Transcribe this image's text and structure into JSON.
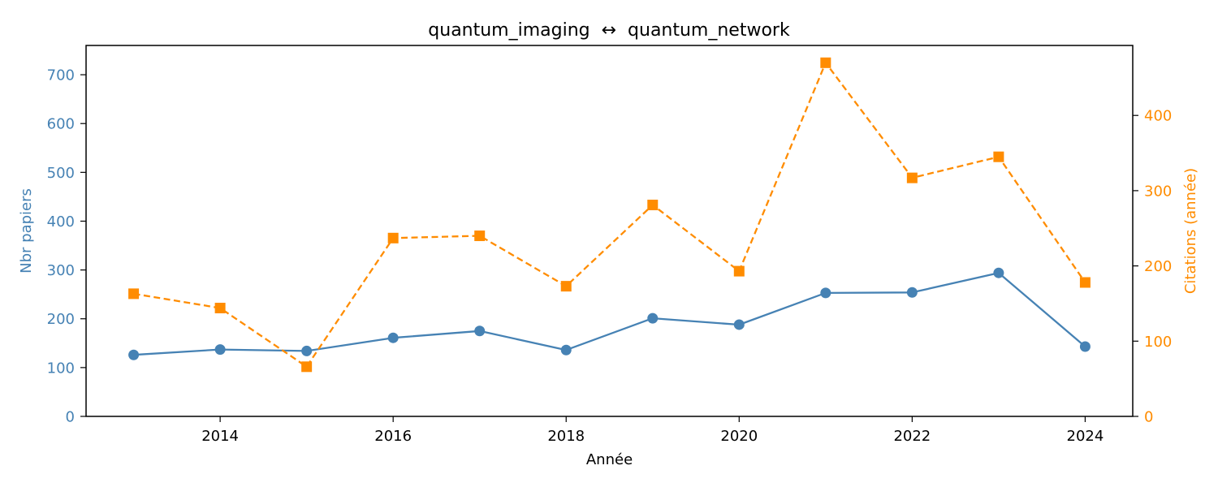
{
  "chart_data": {
    "type": "line",
    "title": "quantum_imaging  ↔  quantum_network",
    "xlabel": "Année",
    "ylabel_left": "Nbr papiers",
    "ylabel_right": "Citations (année)",
    "x": [
      2013,
      2014,
      2015,
      2016,
      2017,
      2018,
      2019,
      2020,
      2021,
      2022,
      2023,
      2024
    ],
    "xlim": [
      2012.45,
      2024.55
    ],
    "x_ticks": [
      2014,
      2016,
      2018,
      2020,
      2022,
      2024
    ],
    "ylim_left": [
      0,
      760
    ],
    "y_ticks_left": [
      0,
      100,
      200,
      300,
      400,
      500,
      600,
      700
    ],
    "ylim_right": [
      0,
      493
    ],
    "y_ticks_right": [
      0,
      100,
      200,
      300,
      400
    ],
    "grid": false,
    "series": [
      {
        "axis": "left",
        "color": "#4682b4",
        "marker": "circle",
        "line_style": "solid",
        "values": [
          126,
          137,
          134,
          161,
          175,
          136,
          201,
          188,
          253,
          254,
          294,
          143
        ]
      },
      {
        "axis": "right",
        "color": "#ff8c00",
        "marker": "square",
        "line_style": "dashed",
        "values": [
          163,
          144,
          66,
          237,
          240,
          173,
          281,
          193,
          470,
          317,
          345,
          178
        ]
      }
    ]
  }
}
